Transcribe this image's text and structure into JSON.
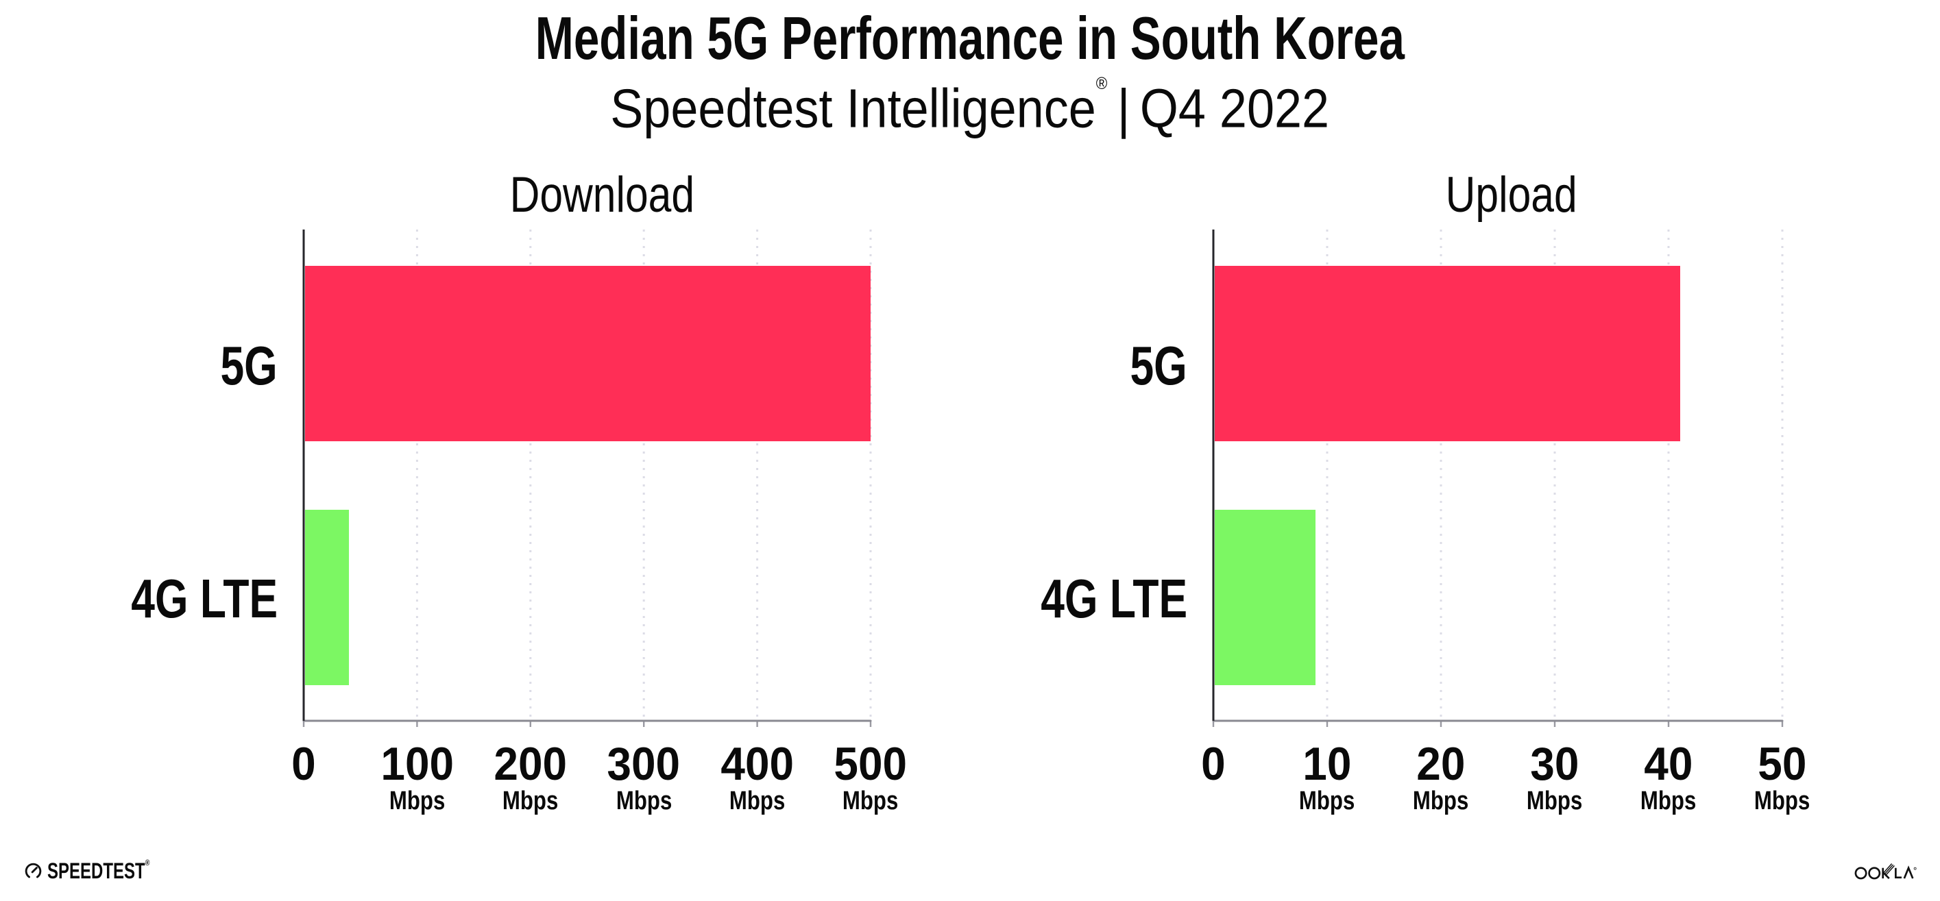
{
  "title": "Median 5G Performance in South Korea",
  "subtitle": {
    "brand": "Speedtest Intelligence",
    "registered_mark": "®",
    "separator": "|",
    "period": "Q4 2022"
  },
  "footer": {
    "speedtest_logo_text": "SPEEDTEST",
    "speedtest_trademark": "®",
    "ookla_logo_text": "OOKLA"
  },
  "colors": {
    "bar_5g": "#FF2E56",
    "bar_4g_lte": "#7CF763",
    "gridline": "#DCDCE6",
    "x_axis": "#8A8A92",
    "axis_tick": "#9A9AA2",
    "y_axis": "#26262B",
    "text": "#0A0A0A"
  },
  "chart_data": [
    {
      "type": "bar",
      "orientation": "horizontal",
      "title": "Download",
      "categories": [
        "5G",
        "4G LTE"
      ],
      "values": [
        500,
        40
      ],
      "unit": "Mbps",
      "xlim": [
        0,
        500
      ],
      "xticks": [
        0,
        100,
        200,
        300,
        400,
        500
      ],
      "grid": "dotted-vertical",
      "legend": "none"
    },
    {
      "type": "bar",
      "orientation": "horizontal",
      "title": "Upload",
      "categories": [
        "5G",
        "4G LTE"
      ],
      "values": [
        41,
        9
      ],
      "unit": "Mbps",
      "xlim": [
        0,
        50
      ],
      "xticks": [
        0,
        10,
        20,
        30,
        40,
        50
      ],
      "grid": "dotted-vertical",
      "legend": "none"
    }
  ]
}
